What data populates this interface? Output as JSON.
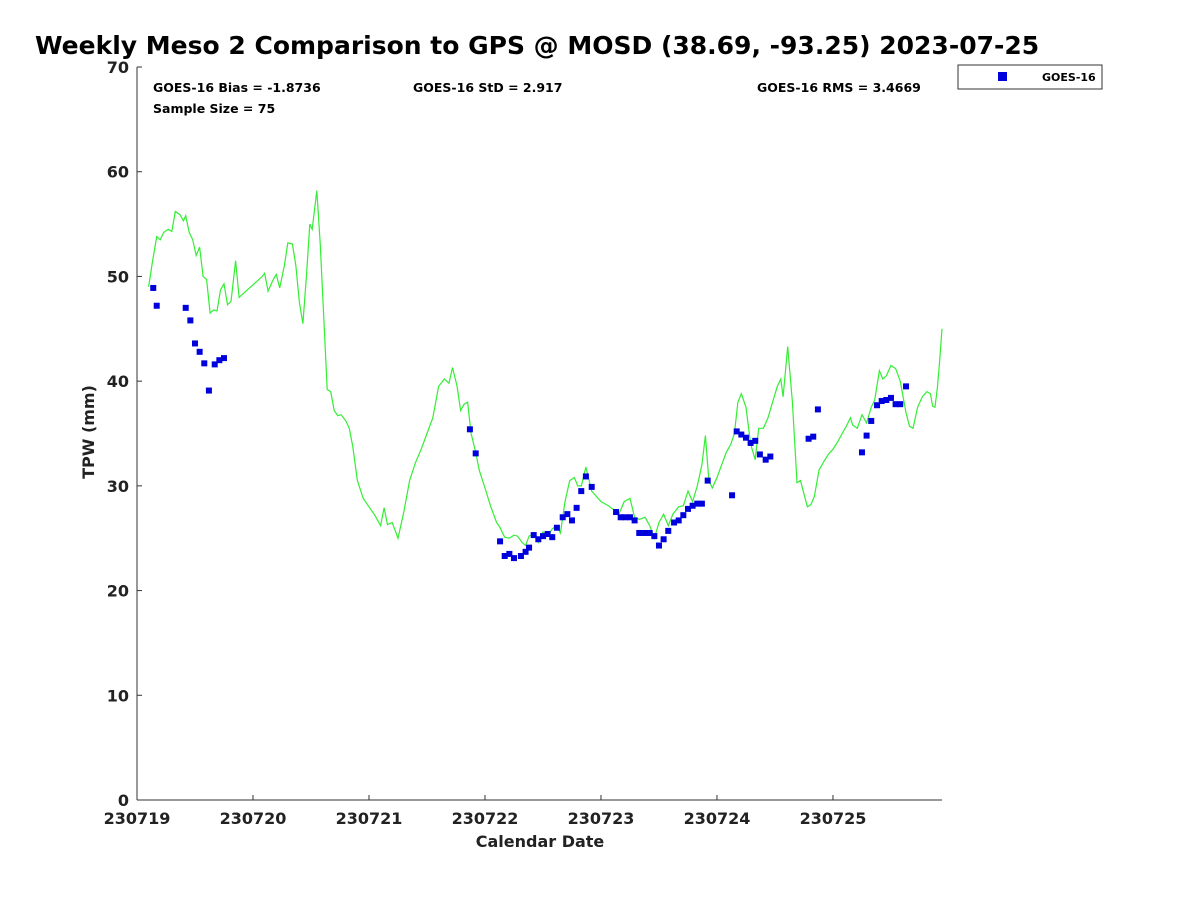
{
  "chart_data": {
    "type": "scatter",
    "title": "Weekly Meso 2 Comparison to GPS @ MOSD (38.69, -93.25) 2023-07-25",
    "xlabel": "Calendar Date",
    "ylabel": "TPW (mm)",
    "xlim": [
      230719.0,
      230725.94
    ],
    "ylim": [
      0,
      70
    ],
    "y_ticks": [
      0,
      10,
      20,
      30,
      40,
      50,
      60,
      70
    ],
    "x_ticks": [
      {
        "value": 230719,
        "label": "230719"
      },
      {
        "value": 230720,
        "label": "230720"
      },
      {
        "value": 230721,
        "label": "230721"
      },
      {
        "value": 230722,
        "label": "230722"
      },
      {
        "value": 230723,
        "label": "230723"
      },
      {
        "value": 230724,
        "label": "230724"
      },
      {
        "value": 230725,
        "label": "230725"
      }
    ],
    "grid": false,
    "legend": {
      "position": "outside-top-right",
      "entries": [
        "GOES-16"
      ]
    },
    "stats": {
      "bias": "GOES-16 Bias = -1.8736",
      "std": "GOES-16 StD = 2.917",
      "rms": "GOES-16 RMS = 3.4669",
      "sample": "Sample Size = 75"
    },
    "colors": {
      "goes": "#0000dd",
      "gps": "#33ee33"
    },
    "series": [
      {
        "name": "GOES-16",
        "style": "square-markers",
        "points": [
          [
            230719.14,
            48.9
          ],
          [
            230719.17,
            47.2
          ],
          [
            230719.42,
            47.0
          ],
          [
            230719.46,
            45.8
          ],
          [
            230719.5,
            43.6
          ],
          [
            230719.54,
            42.8
          ],
          [
            230719.58,
            41.7
          ],
          [
            230719.62,
            39.1
          ],
          [
            230719.67,
            41.6
          ],
          [
            230719.71,
            42.0
          ],
          [
            230719.75,
            42.2
          ],
          [
            230721.87,
            35.4
          ],
          [
            230721.92,
            33.1
          ],
          [
            230722.13,
            24.7
          ],
          [
            230722.17,
            23.3
          ],
          [
            230722.21,
            23.5
          ],
          [
            230722.25,
            23.1
          ],
          [
            230722.31,
            23.3
          ],
          [
            230722.35,
            23.7
          ],
          [
            230722.38,
            24.1
          ],
          [
            230722.42,
            25.3
          ],
          [
            230722.46,
            24.9
          ],
          [
            230722.5,
            25.2
          ],
          [
            230722.54,
            25.4
          ],
          [
            230722.58,
            25.1
          ],
          [
            230722.62,
            26.0
          ],
          [
            230722.67,
            27.0
          ],
          [
            230722.71,
            27.3
          ],
          [
            230722.75,
            26.7
          ],
          [
            230722.79,
            27.9
          ],
          [
            230722.83,
            29.5
          ],
          [
            230722.87,
            30.9
          ],
          [
            230722.92,
            29.9
          ],
          [
            230723.13,
            27.5
          ],
          [
            230723.17,
            27.0
          ],
          [
            230723.21,
            27.0
          ],
          [
            230723.25,
            27.0
          ],
          [
            230723.29,
            26.7
          ],
          [
            230723.33,
            25.5
          ],
          [
            230723.38,
            25.5
          ],
          [
            230723.42,
            25.5
          ],
          [
            230723.46,
            25.2
          ],
          [
            230723.5,
            24.3
          ],
          [
            230723.54,
            24.9
          ],
          [
            230723.58,
            25.7
          ],
          [
            230723.63,
            26.5
          ],
          [
            230723.67,
            26.7
          ],
          [
            230723.71,
            27.2
          ],
          [
            230723.75,
            27.8
          ],
          [
            230723.79,
            28.1
          ],
          [
            230723.83,
            28.3
          ],
          [
            230723.87,
            28.3
          ],
          [
            230723.92,
            30.5
          ],
          [
            230724.13,
            29.1
          ],
          [
            230724.17,
            35.2
          ],
          [
            230724.21,
            34.9
          ],
          [
            230724.25,
            34.6
          ],
          [
            230724.29,
            34.1
          ],
          [
            230724.33,
            34.3
          ],
          [
            230724.37,
            33.0
          ],
          [
            230724.42,
            32.5
          ],
          [
            230724.46,
            32.8
          ],
          [
            230724.79,
            34.5
          ],
          [
            230724.83,
            34.7
          ],
          [
            230724.87,
            37.3
          ],
          [
            230725.25,
            33.2
          ],
          [
            230725.29,
            34.8
          ],
          [
            230725.33,
            36.2
          ],
          [
            230725.38,
            37.7
          ],
          [
            230725.42,
            38.1
          ],
          [
            230725.46,
            38.2
          ],
          [
            230725.5,
            38.4
          ],
          [
            230725.54,
            37.8
          ],
          [
            230725.58,
            37.8
          ],
          [
            230725.63,
            39.5
          ]
        ]
      },
      {
        "name": "GPS",
        "style": "line",
        "points": [
          [
            230719.1,
            49.0
          ],
          [
            230719.13,
            51.2
          ],
          [
            230719.17,
            53.8
          ],
          [
            230719.2,
            53.5
          ],
          [
            230719.23,
            54.2
          ],
          [
            230719.27,
            54.5
          ],
          [
            230719.3,
            54.3
          ],
          [
            230719.33,
            56.2
          ],
          [
            230719.37,
            55.9
          ],
          [
            230719.4,
            55.3
          ],
          [
            230719.42,
            55.8
          ],
          [
            230719.45,
            54.2
          ],
          [
            230719.48,
            53.5
          ],
          [
            230719.51,
            52.0
          ],
          [
            230719.54,
            52.8
          ],
          [
            230719.57,
            50.0
          ],
          [
            230719.6,
            49.7
          ],
          [
            230719.63,
            46.5
          ],
          [
            230719.66,
            46.8
          ],
          [
            230719.69,
            46.7
          ],
          [
            230719.72,
            48.7
          ],
          [
            230719.75,
            49.3
          ],
          [
            230719.78,
            47.3
          ],
          [
            230719.81,
            47.6
          ],
          [
            230719.85,
            51.5
          ],
          [
            230719.88,
            48.0
          ],
          [
            230719.92,
            48.4
          ],
          [
            230720.0,
            49.2
          ],
          [
            230720.08,
            50.0
          ],
          [
            230720.1,
            50.3
          ],
          [
            230720.13,
            48.6
          ],
          [
            230720.17,
            49.6
          ],
          [
            230720.2,
            50.2
          ],
          [
            230720.23,
            48.9
          ],
          [
            230720.27,
            51.0
          ],
          [
            230720.3,
            53.2
          ],
          [
            230720.34,
            53.1
          ],
          [
            230720.37,
            51.0
          ],
          [
            230720.4,
            47.5
          ],
          [
            230720.43,
            45.5
          ],
          [
            230720.46,
            50.0
          ],
          [
            230720.49,
            55.0
          ],
          [
            230720.51,
            54.5
          ],
          [
            230720.55,
            58.2
          ],
          [
            230720.58,
            53.0
          ],
          [
            230720.61,
            46.0
          ],
          [
            230720.64,
            39.2
          ],
          [
            230720.67,
            39.0
          ],
          [
            230720.7,
            37.2
          ],
          [
            230720.73,
            36.7
          ],
          [
            230720.76,
            36.8
          ],
          [
            230720.8,
            36.2
          ],
          [
            230720.83,
            35.5
          ],
          [
            230720.86,
            33.8
          ],
          [
            230720.9,
            30.5
          ],
          [
            230720.95,
            28.8
          ],
          [
            230721.0,
            28.0
          ],
          [
            230721.05,
            27.2
          ],
          [
            230721.1,
            26.2
          ],
          [
            230721.13,
            27.9
          ],
          [
            230721.16,
            26.3
          ],
          [
            230721.2,
            26.5
          ],
          [
            230721.25,
            25.0
          ],
          [
            230721.3,
            27.5
          ],
          [
            230721.35,
            30.5
          ],
          [
            230721.4,
            32.2
          ],
          [
            230721.45,
            33.5
          ],
          [
            230721.5,
            35.0
          ],
          [
            230721.55,
            36.5
          ],
          [
            230721.6,
            39.5
          ],
          [
            230721.65,
            40.2
          ],
          [
            230721.69,
            39.8
          ],
          [
            230721.72,
            41.3
          ],
          [
            230721.76,
            39.5
          ],
          [
            230721.79,
            37.2
          ],
          [
            230721.82,
            37.8
          ],
          [
            230721.85,
            38.0
          ],
          [
            230721.88,
            35.0
          ],
          [
            230721.92,
            33.2
          ],
          [
            230721.95,
            31.5
          ],
          [
            230722.0,
            29.8
          ],
          [
            230722.05,
            28.0
          ],
          [
            230722.1,
            26.5
          ],
          [
            230722.13,
            26.0
          ],
          [
            230722.17,
            25.1
          ],
          [
            230722.21,
            25.0
          ],
          [
            230722.25,
            25.3
          ],
          [
            230722.28,
            25.2
          ],
          [
            230722.32,
            24.6
          ],
          [
            230722.35,
            24.3
          ],
          [
            230722.38,
            25.2
          ],
          [
            230722.42,
            25.4
          ],
          [
            230722.46,
            24.6
          ],
          [
            230722.5,
            25.6
          ],
          [
            230722.54,
            25.2
          ],
          [
            230722.58,
            25.9
          ],
          [
            230722.62,
            26.2
          ],
          [
            230722.65,
            25.5
          ],
          [
            230722.69,
            28.5
          ],
          [
            230722.73,
            30.5
          ],
          [
            230722.77,
            30.8
          ],
          [
            230722.8,
            30.0
          ],
          [
            230722.83,
            30.0
          ],
          [
            230722.87,
            31.8
          ],
          [
            230722.92,
            29.5
          ],
          [
            230723.0,
            28.5
          ],
          [
            230723.05,
            28.2
          ],
          [
            230723.1,
            27.8
          ],
          [
            230723.15,
            27.2
          ],
          [
            230723.2,
            28.5
          ],
          [
            230723.25,
            28.8
          ],
          [
            230723.29,
            27.0
          ],
          [
            230723.33,
            26.8
          ],
          [
            230723.38,
            27.0
          ],
          [
            230723.42,
            26.2
          ],
          [
            230723.46,
            25.0
          ],
          [
            230723.5,
            26.5
          ],
          [
            230723.54,
            27.3
          ],
          [
            230723.58,
            26.2
          ],
          [
            230723.62,
            27.3
          ],
          [
            230723.67,
            28.0
          ],
          [
            230723.71,
            28.1
          ],
          [
            230723.75,
            29.5
          ],
          [
            230723.79,
            28.5
          ],
          [
            230723.83,
            30.0
          ],
          [
            230723.87,
            32.0
          ],
          [
            230723.9,
            34.8
          ],
          [
            230723.93,
            30.5
          ],
          [
            230723.96,
            29.8
          ],
          [
            230724.0,
            30.8
          ],
          [
            230724.04,
            32.0
          ],
          [
            230724.08,
            33.2
          ],
          [
            230724.12,
            34.0
          ],
          [
            230724.15,
            35.0
          ],
          [
            230724.18,
            38.0
          ],
          [
            230724.21,
            38.8
          ],
          [
            230724.25,
            37.5
          ],
          [
            230724.29,
            34.0
          ],
          [
            230724.33,
            32.5
          ],
          [
            230724.36,
            35.5
          ],
          [
            230724.4,
            35.5
          ],
          [
            230724.44,
            36.5
          ],
          [
            230724.48,
            38.0
          ],
          [
            230724.52,
            39.5
          ],
          [
            230724.55,
            40.2
          ],
          [
            230724.57,
            38.5
          ],
          [
            230724.61,
            43.3
          ],
          [
            230724.65,
            38.0
          ],
          [
            230724.69,
            30.3
          ],
          [
            230724.72,
            30.5
          ],
          [
            230724.75,
            29.2
          ],
          [
            230724.78,
            28.0
          ],
          [
            230724.81,
            28.2
          ],
          [
            230724.84,
            29.0
          ],
          [
            230724.88,
            31.5
          ],
          [
            230724.92,
            32.3
          ],
          [
            230724.96,
            33.0
          ],
          [
            230725.0,
            33.5
          ],
          [
            230725.04,
            34.2
          ],
          [
            230725.08,
            35.0
          ],
          [
            230725.12,
            35.8
          ],
          [
            230725.15,
            36.5
          ],
          [
            230725.17,
            35.8
          ],
          [
            230725.21,
            35.5
          ],
          [
            230725.25,
            36.8
          ],
          [
            230725.29,
            36.0
          ],
          [
            230725.33,
            37.5
          ],
          [
            230725.36,
            38.2
          ],
          [
            230725.4,
            41.0
          ],
          [
            230725.43,
            40.2
          ],
          [
            230725.46,
            40.5
          ],
          [
            230725.5,
            41.5
          ],
          [
            230725.54,
            41.2
          ],
          [
            230725.58,
            40.0
          ],
          [
            230725.63,
            37.0
          ],
          [
            230725.66,
            35.7
          ],
          [
            230725.69,
            35.5
          ],
          [
            230725.73,
            37.5
          ],
          [
            230725.77,
            38.5
          ],
          [
            230725.81,
            39.0
          ],
          [
            230725.84,
            38.8
          ],
          [
            230725.86,
            37.6
          ],
          [
            230725.88,
            37.5
          ],
          [
            230725.9,
            39.4
          ],
          [
            230725.92,
            42.0
          ],
          [
            230725.94,
            45.0
          ]
        ]
      }
    ]
  }
}
